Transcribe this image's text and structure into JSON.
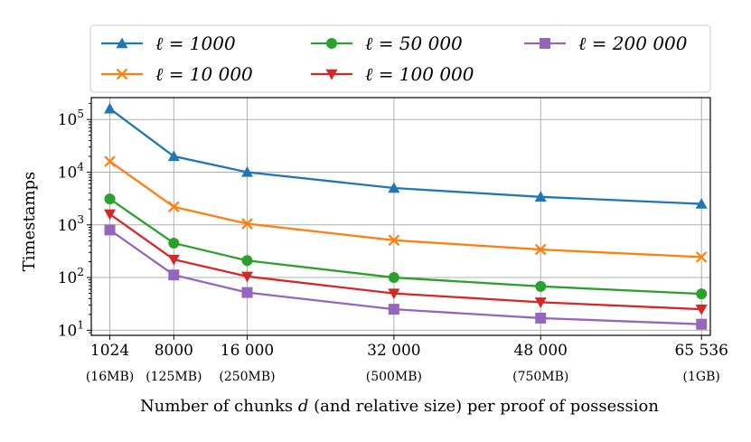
{
  "chart_data": {
    "type": "line",
    "y_scale": "log",
    "xlabel": "Number of chunks d (and relative size) per proof of possession",
    "ylabel": "Timestamps",
    "xlim": [
      -1000,
      66500
    ],
    "ylim": [
      8,
      260000
    ],
    "x": [
      1024,
      8000,
      16000,
      32000,
      48000,
      65536
    ],
    "x_tick_labels": [
      "1024",
      "8000",
      "16 000",
      "32 000",
      "48 000",
      "65 536"
    ],
    "x_tick_sublabels": [
      "(16MB)",
      "(125MB)",
      "(250MB)",
      "(500MB)",
      "(750MB)",
      "(1GB)"
    ],
    "y_ticks": [
      {
        "value": 10,
        "base": "10",
        "exp": "1"
      },
      {
        "value": 100,
        "base": "10",
        "exp": "2"
      },
      {
        "value": 1000,
        "base": "10",
        "exp": "3"
      },
      {
        "value": 10000,
        "base": "10",
        "exp": "4"
      },
      {
        "value": 100000,
        "base": "10",
        "exp": "5"
      }
    ],
    "grid": true,
    "legend_position": "top",
    "series": [
      {
        "name": "ℓ = 1000",
        "color": "#1f77b4",
        "marker": "triangle-up",
        "values": [
          160000,
          20000,
          10000,
          5000,
          3400,
          2500
        ]
      },
      {
        "name": "ℓ = 10 000",
        "color": "#ff7f0e",
        "marker": "x",
        "values": [
          16000,
          2200,
          1050,
          510,
          340,
          245
        ]
      },
      {
        "name": "ℓ = 50 000",
        "color": "#2ca02c",
        "marker": "circle",
        "values": [
          3100,
          450,
          210,
          100,
          68,
          49
        ]
      },
      {
        "name": "ℓ = 100 000",
        "color": "#d62728",
        "marker": "triangle-down",
        "values": [
          1600,
          220,
          105,
          50,
          34,
          25
        ]
      },
      {
        "name": "ℓ = 200 000",
        "color": "#9467bd",
        "marker": "square",
        "values": [
          800,
          112,
          52,
          25,
          17,
          13
        ]
      }
    ]
  }
}
